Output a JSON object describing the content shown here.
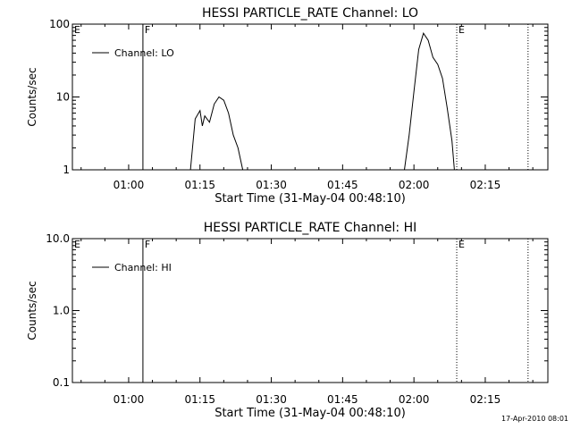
{
  "footer": {
    "timestamp": "17-Apr-2010 08:01"
  },
  "chart_data": [
    {
      "type": "line",
      "title": "HESSI PARTICLE_RATE Channel: LO",
      "xlabel": "Start Time (31-May-04 00:48:10)",
      "ylabel": "Counts/sec",
      "yscale": "log",
      "ylim": [
        1,
        100
      ],
      "xlim_minutes_after_start": [
        0,
        100
      ],
      "xticks": [
        "01:00",
        "01:15",
        "01:30",
        "01:45",
        "02:00",
        "02:15"
      ],
      "yticks": [
        "1",
        "10",
        "100"
      ],
      "legend": {
        "placement": "top-left",
        "entries": [
          "Channel: LO"
        ]
      },
      "markers": [
        {
          "label": "E",
          "time": "00:48:10",
          "style": "solid"
        },
        {
          "label": "F",
          "time": "01:03",
          "style": "solid"
        },
        {
          "label": "E",
          "time": "02:09",
          "style": "dotted"
        },
        {
          "label": "",
          "time": "02:24",
          "style": "dotted"
        }
      ],
      "series": [
        {
          "name": "Channel: LO",
          "segments": [
            [
              [
                "01:13",
                1.0
              ],
              [
                "01:14",
                5.0
              ],
              [
                "01:15",
                6.5
              ],
              [
                "01:15:30",
                4.0
              ],
              [
                "01:16",
                5.5
              ],
              [
                "01:17",
                4.5
              ],
              [
                "01:18",
                8.0
              ],
              [
                "01:19",
                10.0
              ],
              [
                "01:20",
                9.0
              ],
              [
                "01:21",
                6.0
              ],
              [
                "01:22",
                3.0
              ],
              [
                "01:23",
                2.0
              ],
              [
                "01:24",
                1.0
              ]
            ],
            [
              [
                "01:58",
                1.0
              ],
              [
                "01:59",
                3.0
              ],
              [
                "02:00",
                12.0
              ],
              [
                "02:01",
                45.0
              ],
              [
                "02:02",
                75.0
              ],
              [
                "02:03",
                60.0
              ],
              [
                "02:04",
                35.0
              ],
              [
                "02:05",
                28.0
              ],
              [
                "02:06",
                18.0
              ],
              [
                "02:07",
                7.0
              ],
              [
                "02:08",
                2.5
              ],
              [
                "02:08:30",
                1.0
              ]
            ]
          ]
        }
      ]
    },
    {
      "type": "line",
      "title": "HESSI PARTICLE_RATE Channel: HI",
      "xlabel": "Start Time (31-May-04 00:48:10)",
      "ylabel": "Counts/sec",
      "yscale": "log",
      "ylim": [
        0.1,
        10
      ],
      "xlim_minutes_after_start": [
        0,
        100
      ],
      "xticks": [
        "01:00",
        "01:15",
        "01:30",
        "01:45",
        "02:00",
        "02:15"
      ],
      "yticks": [
        "0.1",
        "1.0",
        "10.0"
      ],
      "legend": {
        "placement": "top-left",
        "entries": [
          "Channel: HI"
        ]
      },
      "markers": [
        {
          "label": "E",
          "time": "00:48:10",
          "style": "solid"
        },
        {
          "label": "F",
          "time": "01:03",
          "style": "solid"
        },
        {
          "label": "E",
          "time": "02:09",
          "style": "dotted"
        },
        {
          "label": "",
          "time": "02:24",
          "style": "dotted"
        }
      ],
      "series": [
        {
          "name": "Channel: HI",
          "segments": []
        }
      ]
    }
  ]
}
